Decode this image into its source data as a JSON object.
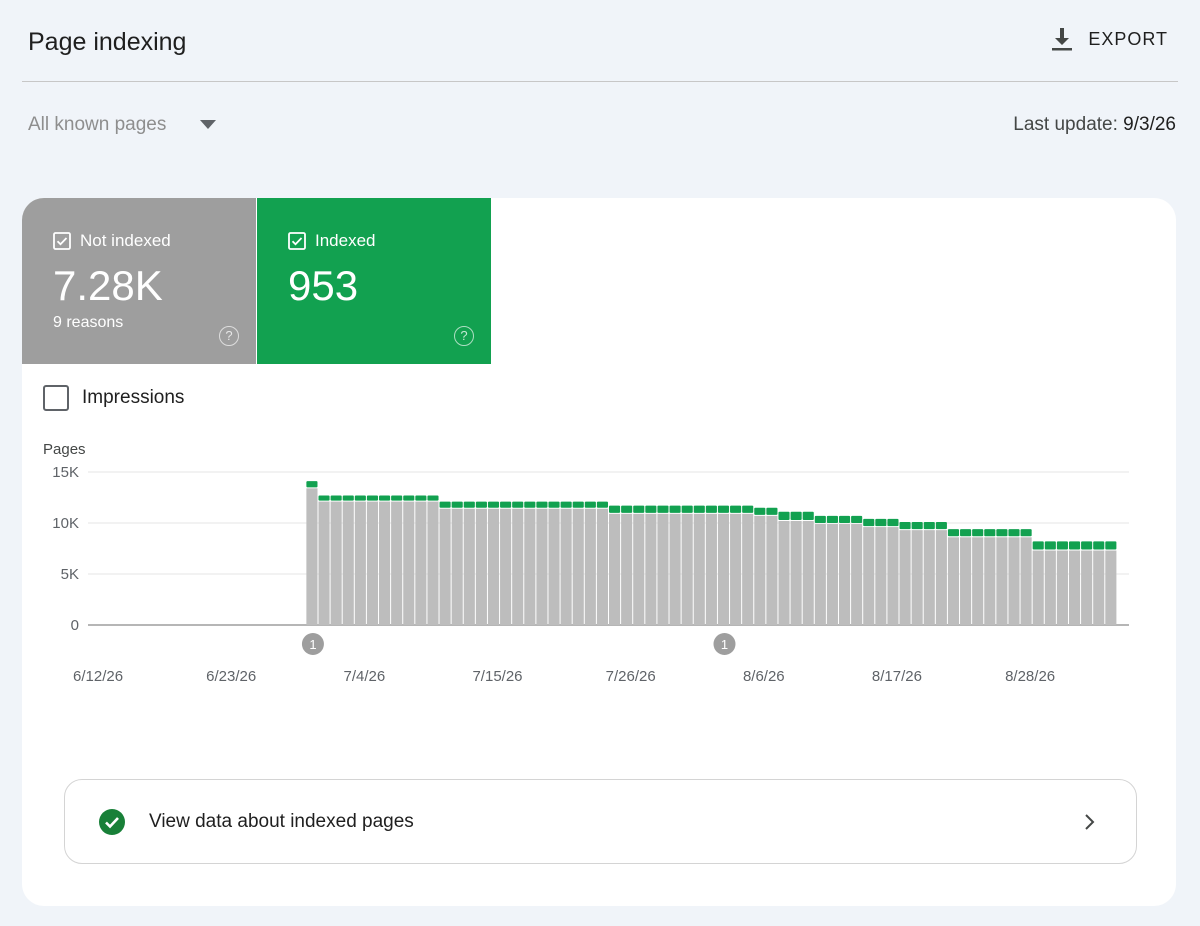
{
  "header": {
    "title": "Page indexing",
    "export_label": "EXPORT"
  },
  "filter": {
    "selected": "All known pages"
  },
  "last_update": {
    "label": "Last update:",
    "value": "9/3/26"
  },
  "tiles": {
    "not_indexed": {
      "label": "Not indexed",
      "value": "7.28K",
      "sub": "9 reasons",
      "color": "#9e9e9e"
    },
    "indexed": {
      "label": "Indexed",
      "value": "953",
      "color": "#12a150"
    }
  },
  "impressions": {
    "label": "Impressions",
    "checked": false
  },
  "chart_data": {
    "type": "bar",
    "stacked": true,
    "ylabel": "Pages",
    "ylim": [
      0,
      15000
    ],
    "yticks": [
      "15K",
      "10K",
      "5K",
      "0"
    ],
    "ytick_values": [
      15000,
      10000,
      5000,
      0
    ],
    "xtick_labels": [
      "6/12/26",
      "6/23/26",
      "7/4/26",
      "7/15/26",
      "7/26/26",
      "8/6/26",
      "8/17/26",
      "8/28/26"
    ],
    "first_date": "6/12/26",
    "dates_count": 86,
    "series": [
      {
        "name": "Not indexed",
        "color": "#bdbdbd",
        "values": [
          0,
          0,
          0,
          0,
          0,
          0,
          0,
          0,
          0,
          0,
          0,
          0,
          0,
          0,
          0,
          0,
          0,
          0,
          13400,
          12100,
          12100,
          12100,
          12100,
          12100,
          12100,
          12100,
          12100,
          12100,
          12100,
          11400,
          11400,
          11400,
          11400,
          11400,
          11400,
          11400,
          11400,
          11400,
          11400,
          11400,
          11400,
          11400,
          11400,
          10900,
          10900,
          10900,
          10900,
          10900,
          10900,
          10900,
          10900,
          10900,
          10900,
          10900,
          10900,
          10700,
          10700,
          10200,
          10200,
          10200,
          9900,
          9900,
          9900,
          9900,
          9600,
          9600,
          9600,
          9300,
          9300,
          9300,
          9300,
          8600,
          8600,
          8600,
          8600,
          8600,
          8600,
          8600,
          7300,
          7300,
          7300,
          7300,
          7300,
          7300,
          7300
        ]
      },
      {
        "name": "Indexed",
        "color": "#12a150",
        "values": [
          0,
          0,
          0,
          0,
          0,
          0,
          0,
          0,
          0,
          0,
          0,
          0,
          0,
          0,
          0,
          0,
          0,
          0,
          700,
          600,
          600,
          600,
          600,
          600,
          600,
          600,
          600,
          600,
          600,
          700,
          700,
          700,
          700,
          700,
          700,
          700,
          700,
          700,
          700,
          700,
          700,
          700,
          700,
          800,
          800,
          800,
          800,
          800,
          800,
          800,
          800,
          800,
          800,
          800,
          800,
          800,
          800,
          900,
          900,
          900,
          800,
          800,
          800,
          800,
          800,
          800,
          800,
          800,
          800,
          800,
          800,
          800,
          800,
          800,
          800,
          800,
          800,
          800,
          900,
          900,
          900,
          900,
          900,
          900,
          900
        ]
      }
    ],
    "annotations": [
      {
        "label": "1",
        "date_index": 18
      },
      {
        "label": "1",
        "date_index": 52
      }
    ]
  },
  "view_data": {
    "label": "View data about indexed pages"
  }
}
